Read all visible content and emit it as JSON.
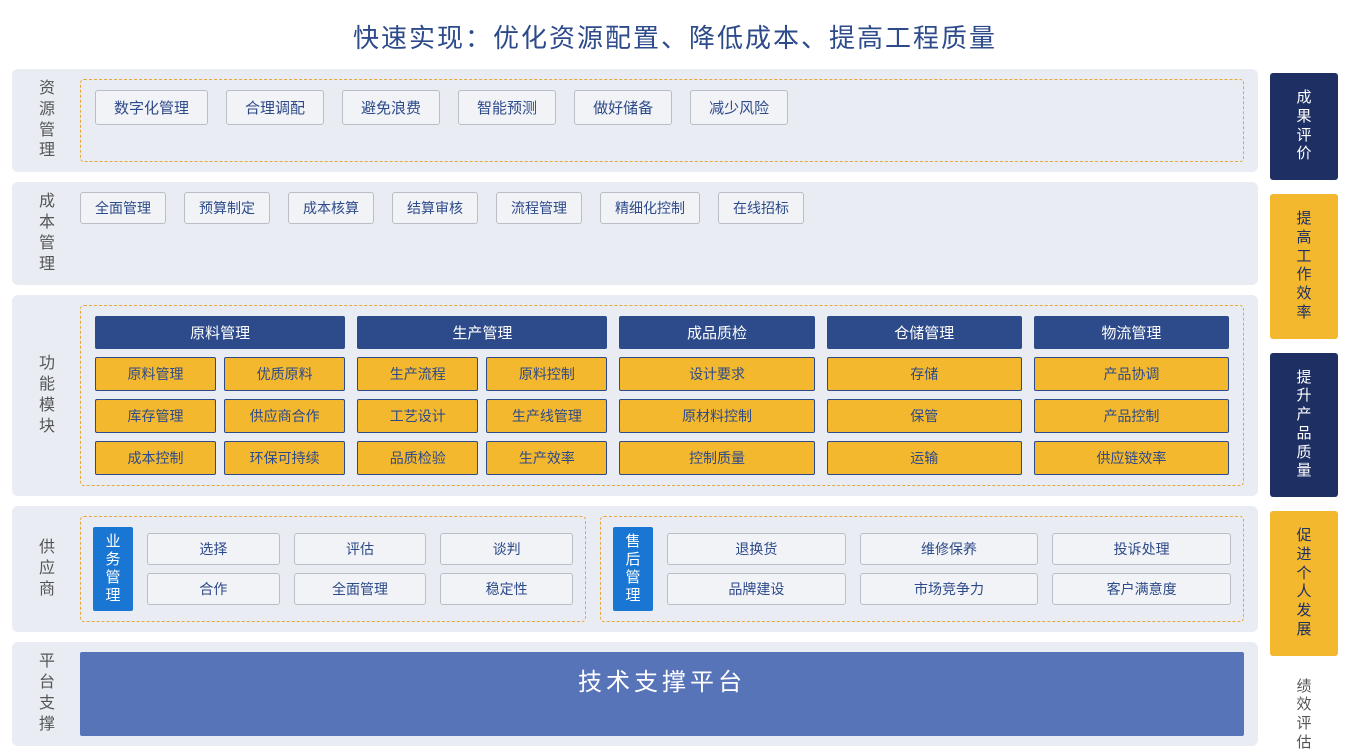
{
  "title": "快速实现：优化资源配置、降低成本、提高工程质量",
  "colors": {
    "navy": "#2d4a8a",
    "darknavy": "#1d2f63",
    "gold": "#f3b82e",
    "gold_border": "#e8a73a",
    "panel_bg": "#e9edf3",
    "chip_gray_bg": "#f1f3f6",
    "chip_gray_border": "#b9bfc9",
    "blue_badge": "#1976d2",
    "platform_bar": "#5874b9"
  },
  "rows": {
    "resource": {
      "label": "资源管理",
      "chips": [
        "数字化管理",
        "合理调配",
        "避免浪费",
        "智能预测",
        "做好储备",
        "减少风险"
      ]
    },
    "cost": {
      "label": "成本管理",
      "chips": [
        "全面管理",
        "预算制定",
        "成本核算",
        "结算审核",
        "流程管理",
        "精细化控制",
        "在线招标"
      ]
    },
    "modules": {
      "label": "功能模块",
      "columns": [
        {
          "header": "原料管理",
          "layout": "g2",
          "items": [
            "原料管理",
            "优质原料",
            "库存管理",
            "供应商合作",
            "成本控制",
            "环保可持续"
          ]
        },
        {
          "header": "生产管理",
          "layout": "g2",
          "items": [
            "生产流程",
            "原料控制",
            "工艺设计",
            "生产线管理",
            "品质检验",
            "生产效率"
          ]
        },
        {
          "header": "成品质检",
          "layout": "g1",
          "narrow": true,
          "items": [
            "设计要求",
            "原材料控制",
            "控制质量"
          ]
        },
        {
          "header": "仓储管理",
          "layout": "g1",
          "narrow": true,
          "items": [
            "存储",
            "保管",
            "运输"
          ]
        },
        {
          "header": "物流管理",
          "layout": "g1",
          "narrow": true,
          "items": [
            "产品协调",
            "产品控制",
            "供应链效率"
          ]
        }
      ]
    },
    "supplier": {
      "label": "供应商",
      "groups": [
        {
          "badge": "业务管理",
          "rows": [
            [
              "选择",
              "评估",
              "谈判"
            ],
            [
              "合作",
              "全面管理",
              "稳定性"
            ]
          ]
        },
        {
          "badge": "售后管理",
          "rows": [
            [
              "退换货",
              "维修保养",
              "投诉处理"
            ],
            [
              "品牌建设",
              "市场竞争力",
              "客户满意度"
            ]
          ]
        }
      ]
    },
    "platform": {
      "label": "平台支撑",
      "bar": "技术支撑平台"
    }
  },
  "right": [
    {
      "text": "成果评价",
      "style": "navy"
    },
    {
      "text": "提高工作效率",
      "style": "gold"
    },
    {
      "text": "提升产品质量",
      "style": "navy"
    },
    {
      "text": "促进个人发展",
      "style": "gold"
    },
    {
      "text": "绩效评估",
      "style": "plain"
    }
  ]
}
